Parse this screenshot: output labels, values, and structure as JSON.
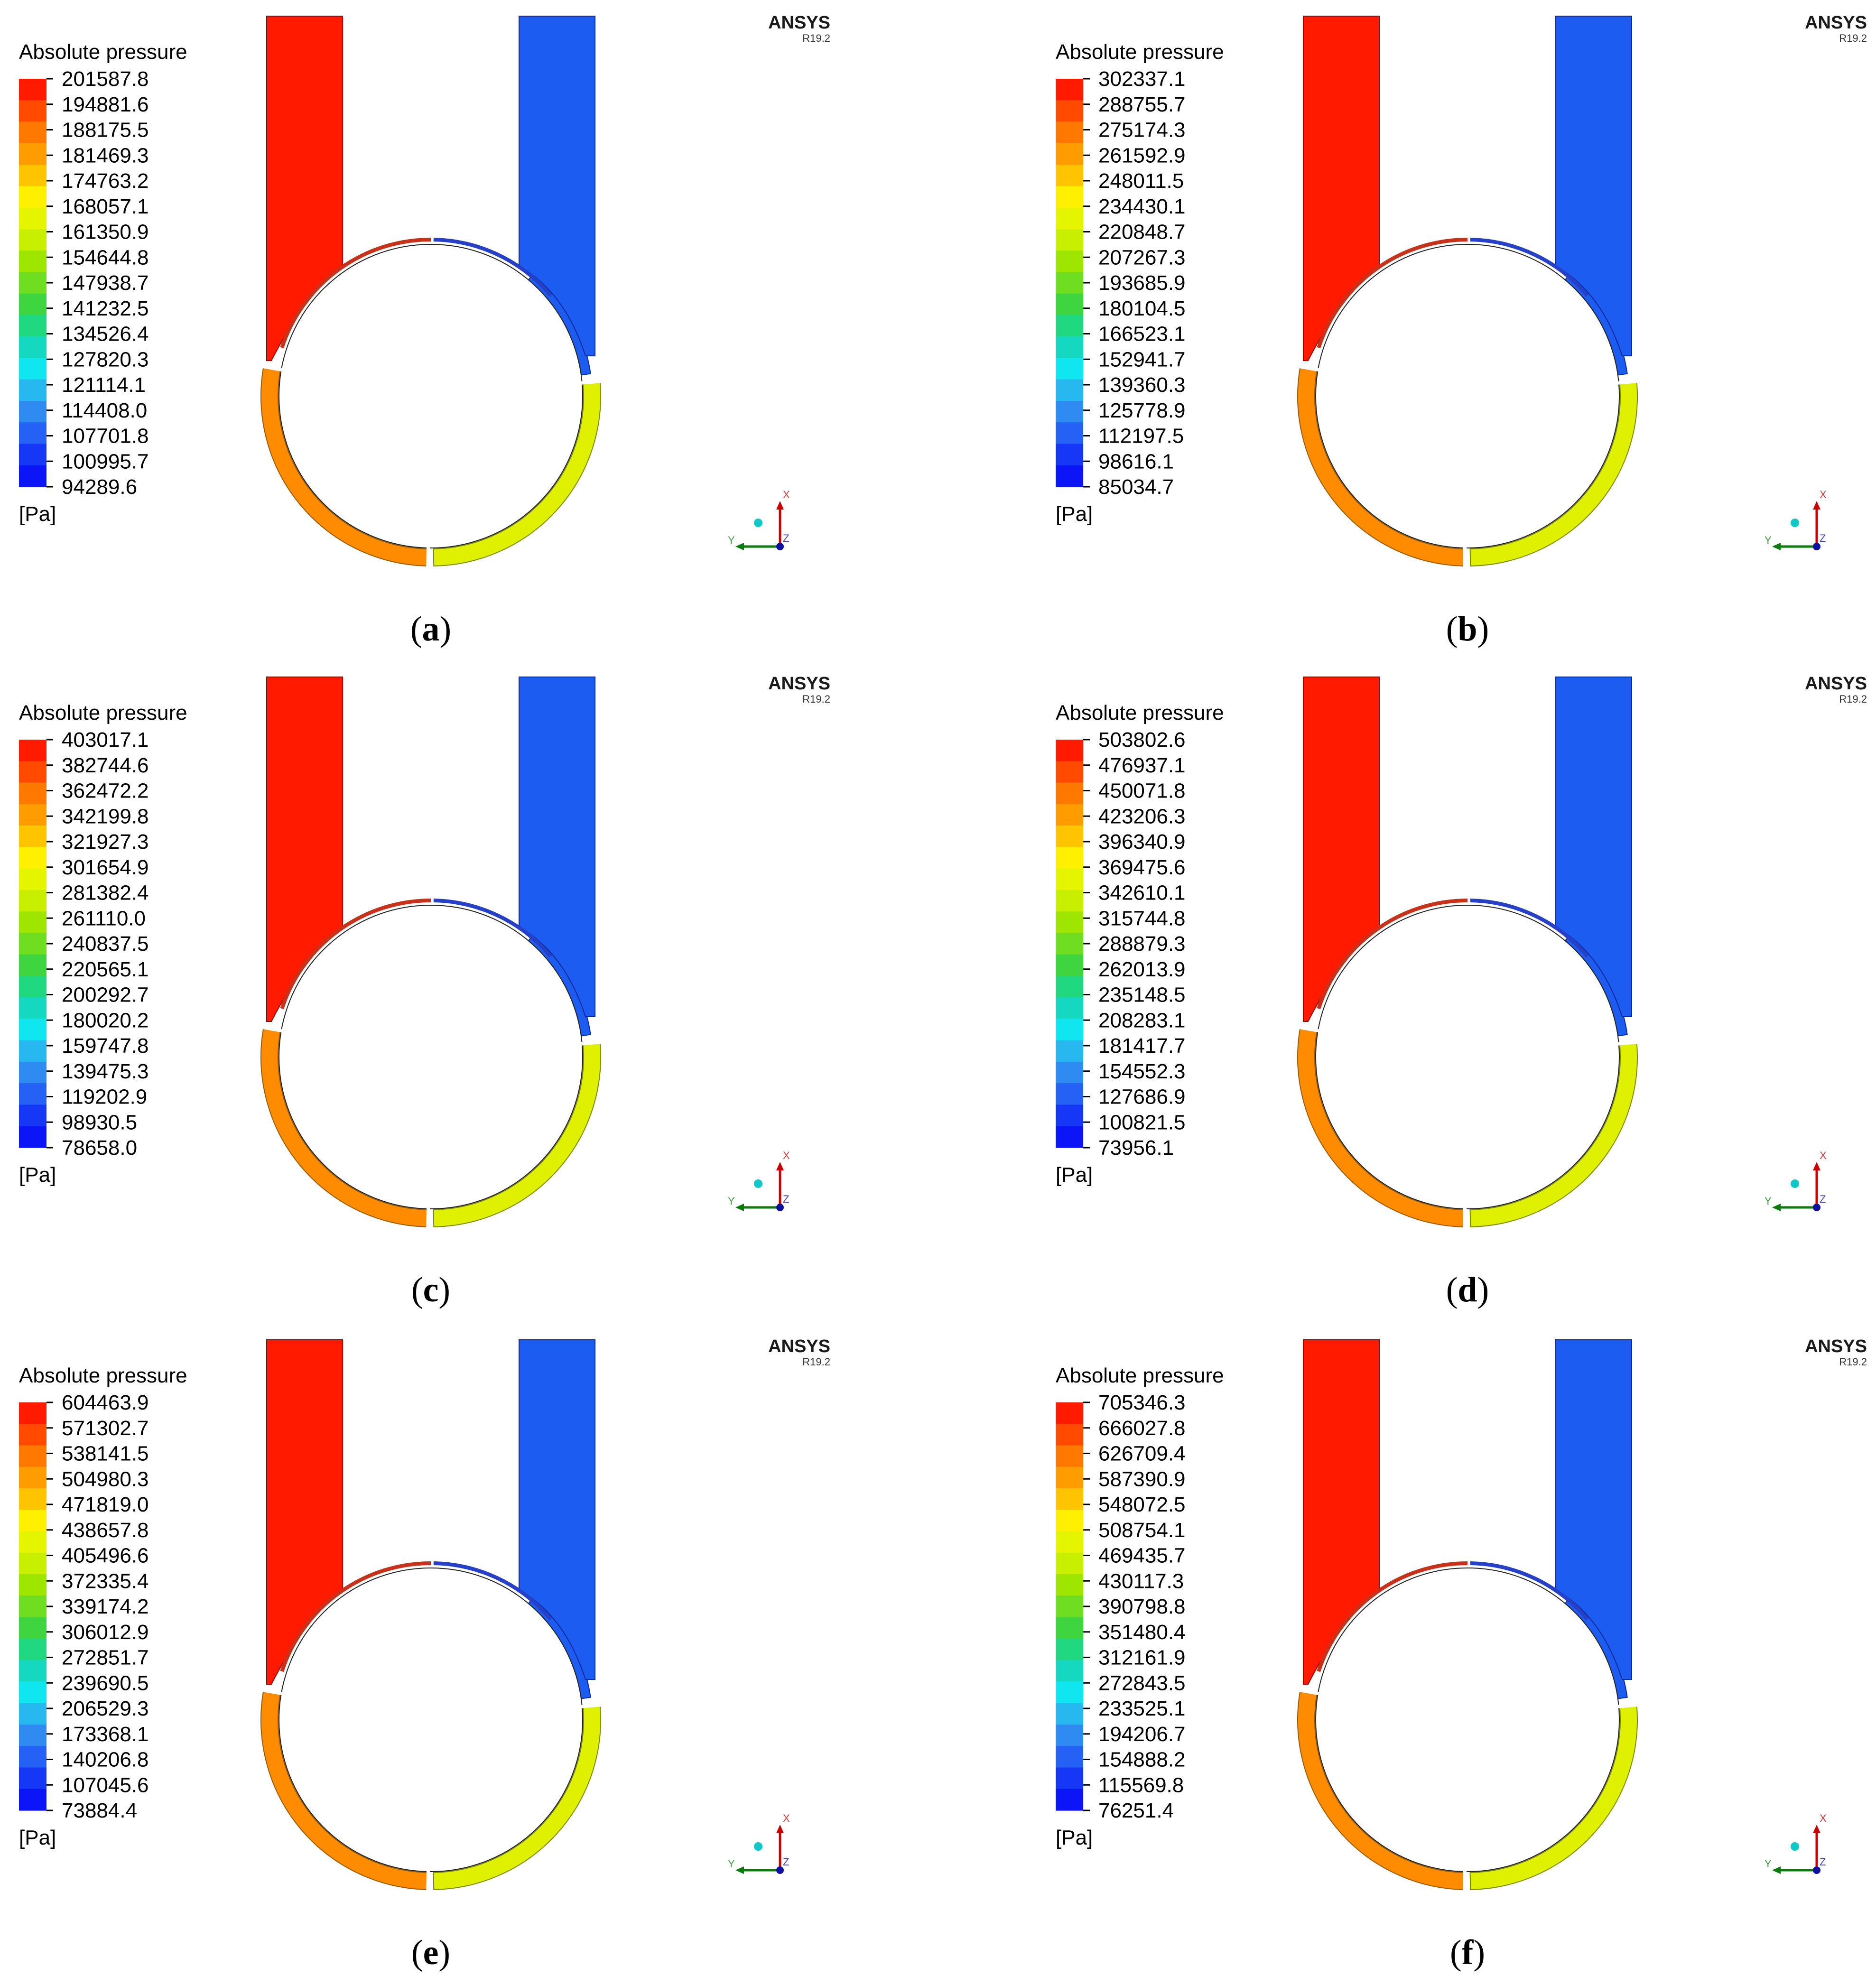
{
  "figure": {
    "legend_title": "Absolute pressure",
    "unit": "[Pa]",
    "brand": "ANSYS",
    "brand_version": "R19.2",
    "axis_labels": {
      "x": "X",
      "y": "Y",
      "z": "Z"
    },
    "colormap": [
      "#ff1a00",
      "#ff4a00",
      "#ff7800",
      "#ff9d00",
      "#ffc400",
      "#fff000",
      "#e5f500",
      "#c8ef00",
      "#9ee600",
      "#6fdd20",
      "#3fd540",
      "#20d880",
      "#14d8c0",
      "#10e6f0",
      "#28b8f0",
      "#2f8af2",
      "#2461f4",
      "#1638f6",
      "#0b15f8"
    ],
    "region_colors": {
      "inlet": "#ff1a00",
      "outlet_left_arc": "#ff8c00",
      "outlet_right_arc": "#dff000",
      "upper_arc": "#c8321a",
      "outlet_pipe": "#1c5cf0"
    }
  },
  "panels": [
    {
      "label": "a",
      "legend_values": [
        "201587.8",
        "194881.6",
        "188175.5",
        "181469.3",
        "174763.2",
        "168057.1",
        "161350.9",
        "154644.8",
        "147938.7",
        "141232.5",
        "134526.4",
        "127820.3",
        "121114.1",
        "114408.0",
        "107701.8",
        "100995.7",
        "94289.6"
      ]
    },
    {
      "label": "b",
      "legend_values": [
        "302337.1",
        "288755.7",
        "275174.3",
        "261592.9",
        "248011.5",
        "234430.1",
        "220848.7",
        "207267.3",
        "193685.9",
        "180104.5",
        "166523.1",
        "152941.7",
        "139360.3",
        "125778.9",
        "112197.5",
        "98616.1",
        "85034.7"
      ]
    },
    {
      "label": "c",
      "legend_values": [
        "403017.1",
        "382744.6",
        "362472.2",
        "342199.8",
        "321927.3",
        "301654.9",
        "281382.4",
        "261110.0",
        "240837.5",
        "220565.1",
        "200292.7",
        "180020.2",
        "159747.8",
        "139475.3",
        "119202.9",
        "98930.5",
        "78658.0"
      ]
    },
    {
      "label": "d",
      "legend_values": [
        "503802.6",
        "476937.1",
        "450071.8",
        "423206.3",
        "396340.9",
        "369475.6",
        "342610.1",
        "315744.8",
        "288879.3",
        "262013.9",
        "235148.5",
        "208283.1",
        "181417.7",
        "154552.3",
        "127686.9",
        "100821.5",
        "73956.1"
      ]
    },
    {
      "label": "e",
      "legend_values": [
        "604463.9",
        "571302.7",
        "538141.5",
        "504980.3",
        "471819.0",
        "438657.8",
        "405496.6",
        "372335.4",
        "339174.2",
        "306012.9",
        "272851.7",
        "239690.5",
        "206529.3",
        "173368.1",
        "140206.8",
        "107045.6",
        "73884.4"
      ]
    },
    {
      "label": "f",
      "legend_values": [
        "705346.3",
        "666027.8",
        "626709.4",
        "587390.9",
        "548072.5",
        "508754.1",
        "469435.7",
        "430117.3",
        "390798.8",
        "351480.4",
        "312161.9",
        "272843.5",
        "233525.1",
        "194206.7",
        "154888.2",
        "115569.8",
        "76251.4"
      ]
    }
  ]
}
